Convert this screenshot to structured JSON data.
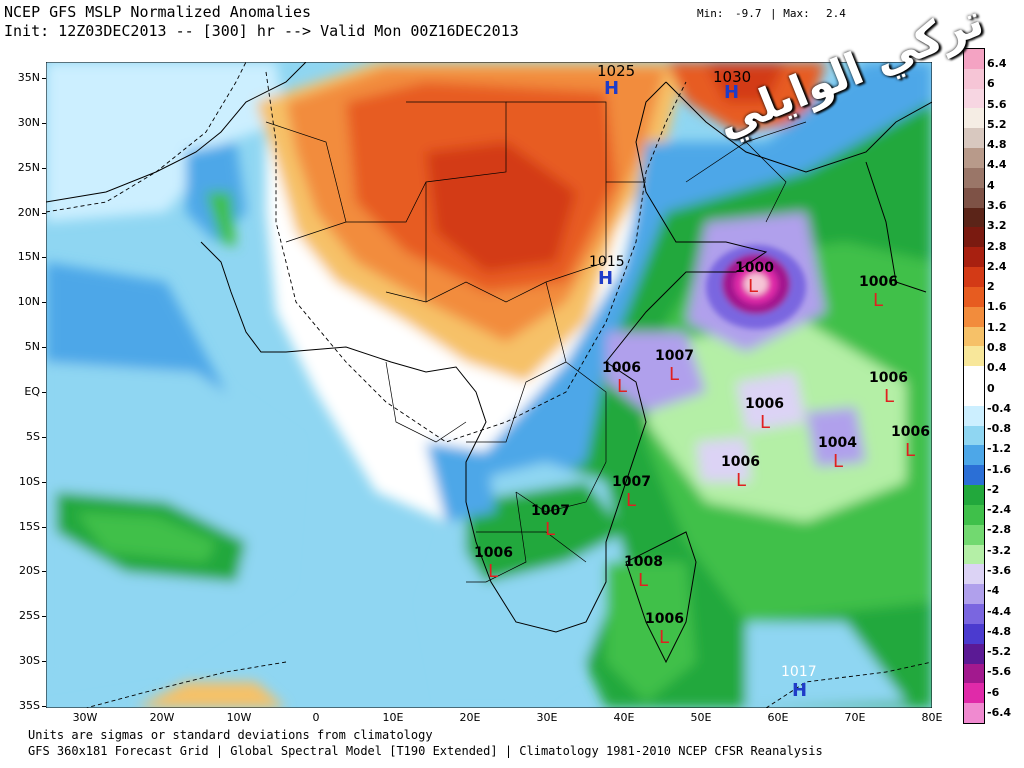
{
  "header": {
    "title": "NCEP GFS MSLP Normalized Anomalies",
    "init_line": "Init: 12Z03DEC2013 -- [300] hr --> Valid Mon 00Z16DEC2013",
    "min_label": "Min:",
    "min_value": "-9.7",
    "max_label": "| Max:",
    "max_value": "2.4"
  },
  "footer": {
    "line1": "Units are sigmas or standard deviations from climatology",
    "line2": "GFS 360x181 Forecast Grid | Global Spectral Model [T190 Extended] | Climatology 1981-2010 NCEP CFSR Reanalysis"
  },
  "watermark": {
    "text": "تركي الوايلي"
  },
  "lat_labels": [
    "35N",
    "30N",
    "25N",
    "20N",
    "15N",
    "10N",
    "5N",
    "EQ",
    "5S",
    "10S",
    "15S",
    "20S",
    "25S",
    "30S",
    "35S"
  ],
  "lon_labels": [
    "30W",
    "20W",
    "10W",
    "0",
    "10E",
    "20E",
    "30E",
    "40E",
    "50E",
    "60E",
    "70E",
    "80E"
  ],
  "colorbar": {
    "labels": [
      "6.4",
      "6",
      "5.6",
      "5.2",
      "4.8",
      "4.4",
      "4",
      "3.6",
      "3.2",
      "2.8",
      "2.4",
      "2",
      "1.6",
      "1.2",
      "0.8",
      "0.4",
      "0",
      "-0.4",
      "-0.8",
      "-1.2",
      "-1.6",
      "-2",
      "-2.4",
      "-2.8",
      "-3.2",
      "-3.6",
      "-4",
      "-4.4",
      "-4.8",
      "-5.2",
      "-5.6",
      "-6",
      "-6.4"
    ],
    "colors": [
      "#f4a3c3",
      "#f6c5d6",
      "#f7d6e2",
      "#f5ede4",
      "#d8c8bf",
      "#b89a8a",
      "#9a7668",
      "#7e5246",
      "#5b2418",
      "#7a1a10",
      "#a82010",
      "#d33a16",
      "#e75c20",
      "#f28c3c",
      "#f6c168",
      "#f8e79a",
      "#ffffff",
      "#ffffff",
      "#ccefff",
      "#8fd6f2",
      "#4da7e8",
      "#2b6fd6",
      "#22a83c",
      "#3fc04a",
      "#72d970",
      "#b4efa6",
      "#dcd3f5",
      "#b0a0ec",
      "#7a66e0",
      "#4b3bcf",
      "#5b1a95",
      "#a2198e",
      "#e02aa9",
      "#f08ad0"
    ]
  },
  "pressure_centers": [
    {
      "type": "H",
      "value": "1025"
    },
    {
      "type": "H",
      "value": "1030"
    },
    {
      "type": "H",
      "value": "1015"
    },
    {
      "type": "H",
      "value": "1017"
    },
    {
      "type": "L",
      "value": "1000"
    },
    {
      "type": "L",
      "value": "1006"
    },
    {
      "type": "L",
      "value": "1007"
    },
    {
      "type": "L",
      "value": "1006"
    },
    {
      "type": "L",
      "value": "1006"
    },
    {
      "type": "L",
      "value": "1006"
    },
    {
      "type": "L",
      "value": "1004"
    },
    {
      "type": "L",
      "value": "1006"
    },
    {
      "type": "L",
      "value": "1006"
    },
    {
      "type": "L",
      "value": "1007"
    },
    {
      "type": "L",
      "value": "1007"
    },
    {
      "type": "L",
      "value": "1006"
    },
    {
      "type": "L",
      "value": "1008"
    },
    {
      "type": "L",
      "value": "1006"
    }
  ]
}
